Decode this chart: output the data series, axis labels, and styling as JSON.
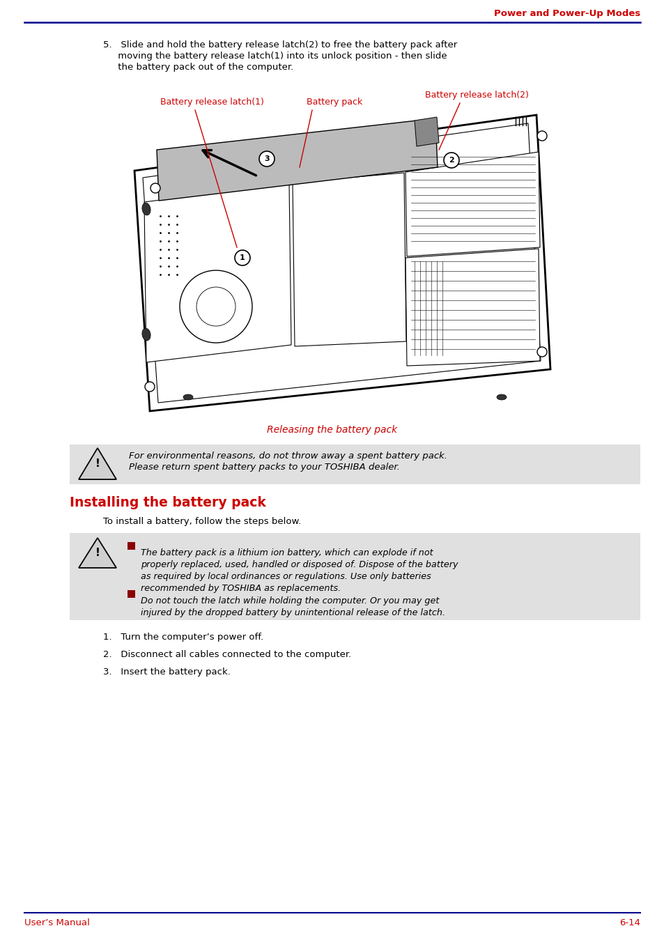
{
  "header_text": "Power and Power-Up Modes",
  "header_color": "#cc0000",
  "header_line_color": "#00008B",
  "footer_left": "User’s Manual",
  "footer_right": "6-14",
  "footer_color": "#cc0000",
  "footer_line_color": "#00008B",
  "bg_color": "#ffffff",
  "body_text_color": "#000000",
  "step5_line1": "5.   Slide and hold the battery release latch(2) to free the battery pack after",
  "step5_line2": "     moving the battery release latch(1) into its unlock position - then slide",
  "step5_line3": "     the battery pack out of the computer.",
  "caption_text": "Releasing the battery pack",
  "caption_color": "#cc0000",
  "label1_text": "Battery release latch(1)",
  "label2_text": "Battery pack",
  "label3_text": "Battery release latch(2)",
  "label_color": "#cc0000",
  "warn1_line1": "For environmental reasons, do not throw away a spent battery pack.",
  "warn1_line2": "Please return spent battery packs to your TOSHIBA dealer.",
  "warning_bg": "#e0e0e0",
  "section_title": "Installing the battery pack",
  "section_title_color": "#cc0000",
  "section_intro": "To install a battery, follow the steps below.",
  "w2_l1": "The battery pack is a lithium ion battery, which can explode if not",
  "w2_l2": "properly replaced, used, handled or disposed of. Dispose of the battery",
  "w2_l3": "as required by local ordinances or regulations. Use only batteries",
  "w2_l4": "recommended by TOSHIBA as replacements.",
  "w3_l1": "Do not touch the latch while holding the computer. Or you may get",
  "w3_l2": "injured by the dropped battery by unintentional release of the latch.",
  "step1": "1.   Turn the computer’s power off.",
  "step2": "2.   Disconnect all cables connected to the computer.",
  "step3": "3.   Insert the battery pack.",
  "bullet_color": "#8b0000"
}
